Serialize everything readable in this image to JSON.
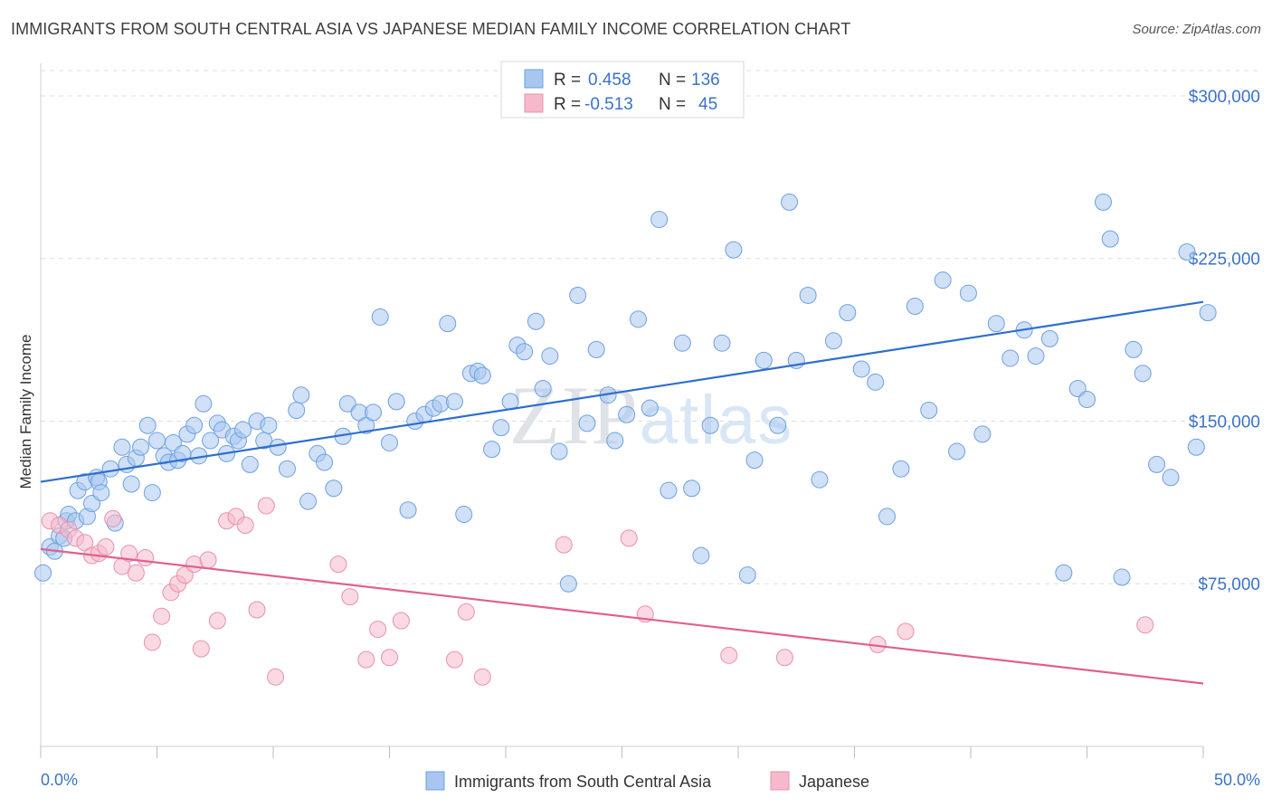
{
  "title": "IMMIGRANTS FROM SOUTH CENTRAL ASIA VS JAPANESE MEDIAN FAMILY INCOME CORRELATION CHART",
  "source": "Source: ZipAtlas.com",
  "watermark": "ZIPatlas",
  "chart_data": {
    "type": "scatter",
    "ylabel": "Median Family Income",
    "xlim": [
      0,
      50
    ],
    "ylim": [
      0,
      315000
    ],
    "x_tick_labels": {
      "left": "0.0%",
      "right": "50.0%"
    },
    "y_ticks": [
      {
        "value": 75000,
        "label": "$75,000"
      },
      {
        "value": 150000,
        "label": "$150,000"
      },
      {
        "value": 225000,
        "label": "$225,000"
      },
      {
        "value": 300000,
        "label": "$300,000"
      }
    ],
    "grid": true,
    "legend_position": "top-center",
    "stats": [
      {
        "r_label": "R = ",
        "r": "0.458",
        "n_label": "N = ",
        "n": "136"
      },
      {
        "r_label": "R = ",
        "r": "-0.513",
        "n_label": "N = ",
        "n": "45"
      }
    ],
    "series": [
      {
        "name": "Immigrants from South Central Asia",
        "color": "#6ea0e0",
        "fill": "#a8c6f0",
        "trend": {
          "x": [
            0,
            50
          ],
          "y": [
            122000,
            205000
          ],
          "color": "#2e6fcd"
        },
        "points": [
          [
            0.1,
            80000
          ],
          [
            0.4,
            92000
          ],
          [
            0.6,
            90000
          ],
          [
            0.8,
            97000
          ],
          [
            1.0,
            96000
          ],
          [
            1.1,
            104000
          ],
          [
            1.2,
            107000
          ],
          [
            1.5,
            104000
          ],
          [
            1.6,
            118000
          ],
          [
            1.9,
            122000
          ],
          [
            2.0,
            106000
          ],
          [
            2.2,
            112000
          ],
          [
            2.4,
            124000
          ],
          [
            2.5,
            122000
          ],
          [
            2.6,
            117000
          ],
          [
            3.0,
            128000
          ],
          [
            3.2,
            103000
          ],
          [
            3.5,
            138000
          ],
          [
            3.7,
            130000
          ],
          [
            3.9,
            121000
          ],
          [
            4.1,
            133000
          ],
          [
            4.3,
            138000
          ],
          [
            4.6,
            148000
          ],
          [
            4.8,
            117000
          ],
          [
            5.0,
            141000
          ],
          [
            5.3,
            134000
          ],
          [
            5.5,
            131000
          ],
          [
            5.7,
            140000
          ],
          [
            5.9,
            132000
          ],
          [
            6.1,
            135000
          ],
          [
            6.3,
            144000
          ],
          [
            6.6,
            148000
          ],
          [
            6.8,
            134000
          ],
          [
            7.0,
            158000
          ],
          [
            7.3,
            141000
          ],
          [
            7.6,
            149000
          ],
          [
            7.8,
            146000
          ],
          [
            8.0,
            135000
          ],
          [
            8.3,
            143000
          ],
          [
            8.5,
            141000
          ],
          [
            8.7,
            146000
          ],
          [
            9.0,
            130000
          ],
          [
            9.3,
            150000
          ],
          [
            9.6,
            141000
          ],
          [
            9.8,
            148000
          ],
          [
            10.2,
            138000
          ],
          [
            10.6,
            128000
          ],
          [
            11.0,
            155000
          ],
          [
            11.2,
            162000
          ],
          [
            11.5,
            113000
          ],
          [
            11.9,
            135000
          ],
          [
            12.2,
            131000
          ],
          [
            12.6,
            119000
          ],
          [
            13.0,
            143000
          ],
          [
            13.2,
            158000
          ],
          [
            13.7,
            154000
          ],
          [
            14.0,
            148000
          ],
          [
            14.3,
            154000
          ],
          [
            14.6,
            198000
          ],
          [
            15.0,
            140000
          ],
          [
            15.3,
            159000
          ],
          [
            15.8,
            109000
          ],
          [
            16.1,
            150000
          ],
          [
            16.5,
            153000
          ],
          [
            16.9,
            156000
          ],
          [
            17.2,
            158000
          ],
          [
            17.5,
            195000
          ],
          [
            17.8,
            159000
          ],
          [
            18.2,
            107000
          ],
          [
            18.5,
            172000
          ],
          [
            18.8,
            173000
          ],
          [
            19.0,
            171000
          ],
          [
            19.4,
            137000
          ],
          [
            19.8,
            147000
          ],
          [
            20.2,
            159000
          ],
          [
            20.5,
            185000
          ],
          [
            20.8,
            182000
          ],
          [
            21.3,
            196000
          ],
          [
            21.6,
            165000
          ],
          [
            21.9,
            180000
          ],
          [
            22.3,
            136000
          ],
          [
            22.7,
            75000
          ],
          [
            23.1,
            208000
          ],
          [
            23.5,
            149000
          ],
          [
            23.9,
            183000
          ],
          [
            24.4,
            162000
          ],
          [
            24.7,
            141000
          ],
          [
            25.2,
            153000
          ],
          [
            25.7,
            197000
          ],
          [
            26.2,
            156000
          ],
          [
            26.6,
            243000
          ],
          [
            27.0,
            118000
          ],
          [
            27.6,
            186000
          ],
          [
            28.0,
            119000
          ],
          [
            28.4,
            88000
          ],
          [
            28.8,
            148000
          ],
          [
            29.3,
            186000
          ],
          [
            29.8,
            229000
          ],
          [
            30.4,
            79000
          ],
          [
            30.7,
            132000
          ],
          [
            31.1,
            178000
          ],
          [
            31.7,
            148000
          ],
          [
            32.2,
            251000
          ],
          [
            32.5,
            178000
          ],
          [
            33.0,
            208000
          ],
          [
            33.5,
            123000
          ],
          [
            34.1,
            187000
          ],
          [
            34.7,
            200000
          ],
          [
            35.3,
            174000
          ],
          [
            35.9,
            168000
          ],
          [
            36.4,
            106000
          ],
          [
            37.0,
            128000
          ],
          [
            37.6,
            203000
          ],
          [
            38.2,
            155000
          ],
          [
            38.8,
            215000
          ],
          [
            39.4,
            136000
          ],
          [
            39.9,
            209000
          ],
          [
            40.5,
            144000
          ],
          [
            41.1,
            195000
          ],
          [
            41.7,
            179000
          ],
          [
            42.3,
            192000
          ],
          [
            42.8,
            180000
          ],
          [
            43.4,
            188000
          ],
          [
            44.0,
            80000
          ],
          [
            44.6,
            165000
          ],
          [
            45.0,
            160000
          ],
          [
            45.7,
            251000
          ],
          [
            46.0,
            234000
          ],
          [
            46.5,
            78000
          ],
          [
            47.0,
            183000
          ],
          [
            47.4,
            172000
          ],
          [
            48.0,
            130000
          ],
          [
            48.6,
            124000
          ],
          [
            49.3,
            228000
          ],
          [
            49.7,
            138000
          ],
          [
            50.2,
            200000
          ]
        ]
      },
      {
        "name": "Japanese",
        "color": "#e890ae",
        "fill": "#f6b9cb",
        "trend": {
          "x": [
            0,
            50
          ],
          "y": [
            91000,
            29000
          ],
          "color": "#e0608e"
        },
        "points": [
          [
            0.4,
            104000
          ],
          [
            0.8,
            102000
          ],
          [
            1.2,
            100000
          ],
          [
            1.5,
            96000
          ],
          [
            1.9,
            94000
          ],
          [
            2.2,
            88000
          ],
          [
            2.5,
            89000
          ],
          [
            2.8,
            92000
          ],
          [
            3.1,
            105000
          ],
          [
            3.5,
            83000
          ],
          [
            3.8,
            89000
          ],
          [
            4.1,
            80000
          ],
          [
            4.5,
            87000
          ],
          [
            4.8,
            48000
          ],
          [
            5.2,
            60000
          ],
          [
            5.6,
            71000
          ],
          [
            5.9,
            75000
          ],
          [
            6.2,
            79000
          ],
          [
            6.6,
            84000
          ],
          [
            6.9,
            45000
          ],
          [
            7.2,
            86000
          ],
          [
            7.6,
            58000
          ],
          [
            8.0,
            104000
          ],
          [
            8.4,
            106000
          ],
          [
            8.8,
            102000
          ],
          [
            9.3,
            63000
          ],
          [
            9.7,
            111000
          ],
          [
            10.1,
            32000
          ],
          [
            12.8,
            84000
          ],
          [
            13.3,
            69000
          ],
          [
            14.0,
            40000
          ],
          [
            14.5,
            54000
          ],
          [
            15.0,
            41000
          ],
          [
            15.5,
            58000
          ],
          [
            17.8,
            40000
          ],
          [
            18.3,
            62000
          ],
          [
            19.0,
            32000
          ],
          [
            22.5,
            93000
          ],
          [
            25.3,
            96000
          ],
          [
            26.0,
            61000
          ],
          [
            29.6,
            42000
          ],
          [
            32.0,
            41000
          ],
          [
            36.0,
            47000
          ],
          [
            37.2,
            53000
          ],
          [
            47.5,
            56000
          ]
        ]
      }
    ]
  },
  "bottom_legend": [
    "Immigrants from South Central Asia",
    "Japanese"
  ]
}
